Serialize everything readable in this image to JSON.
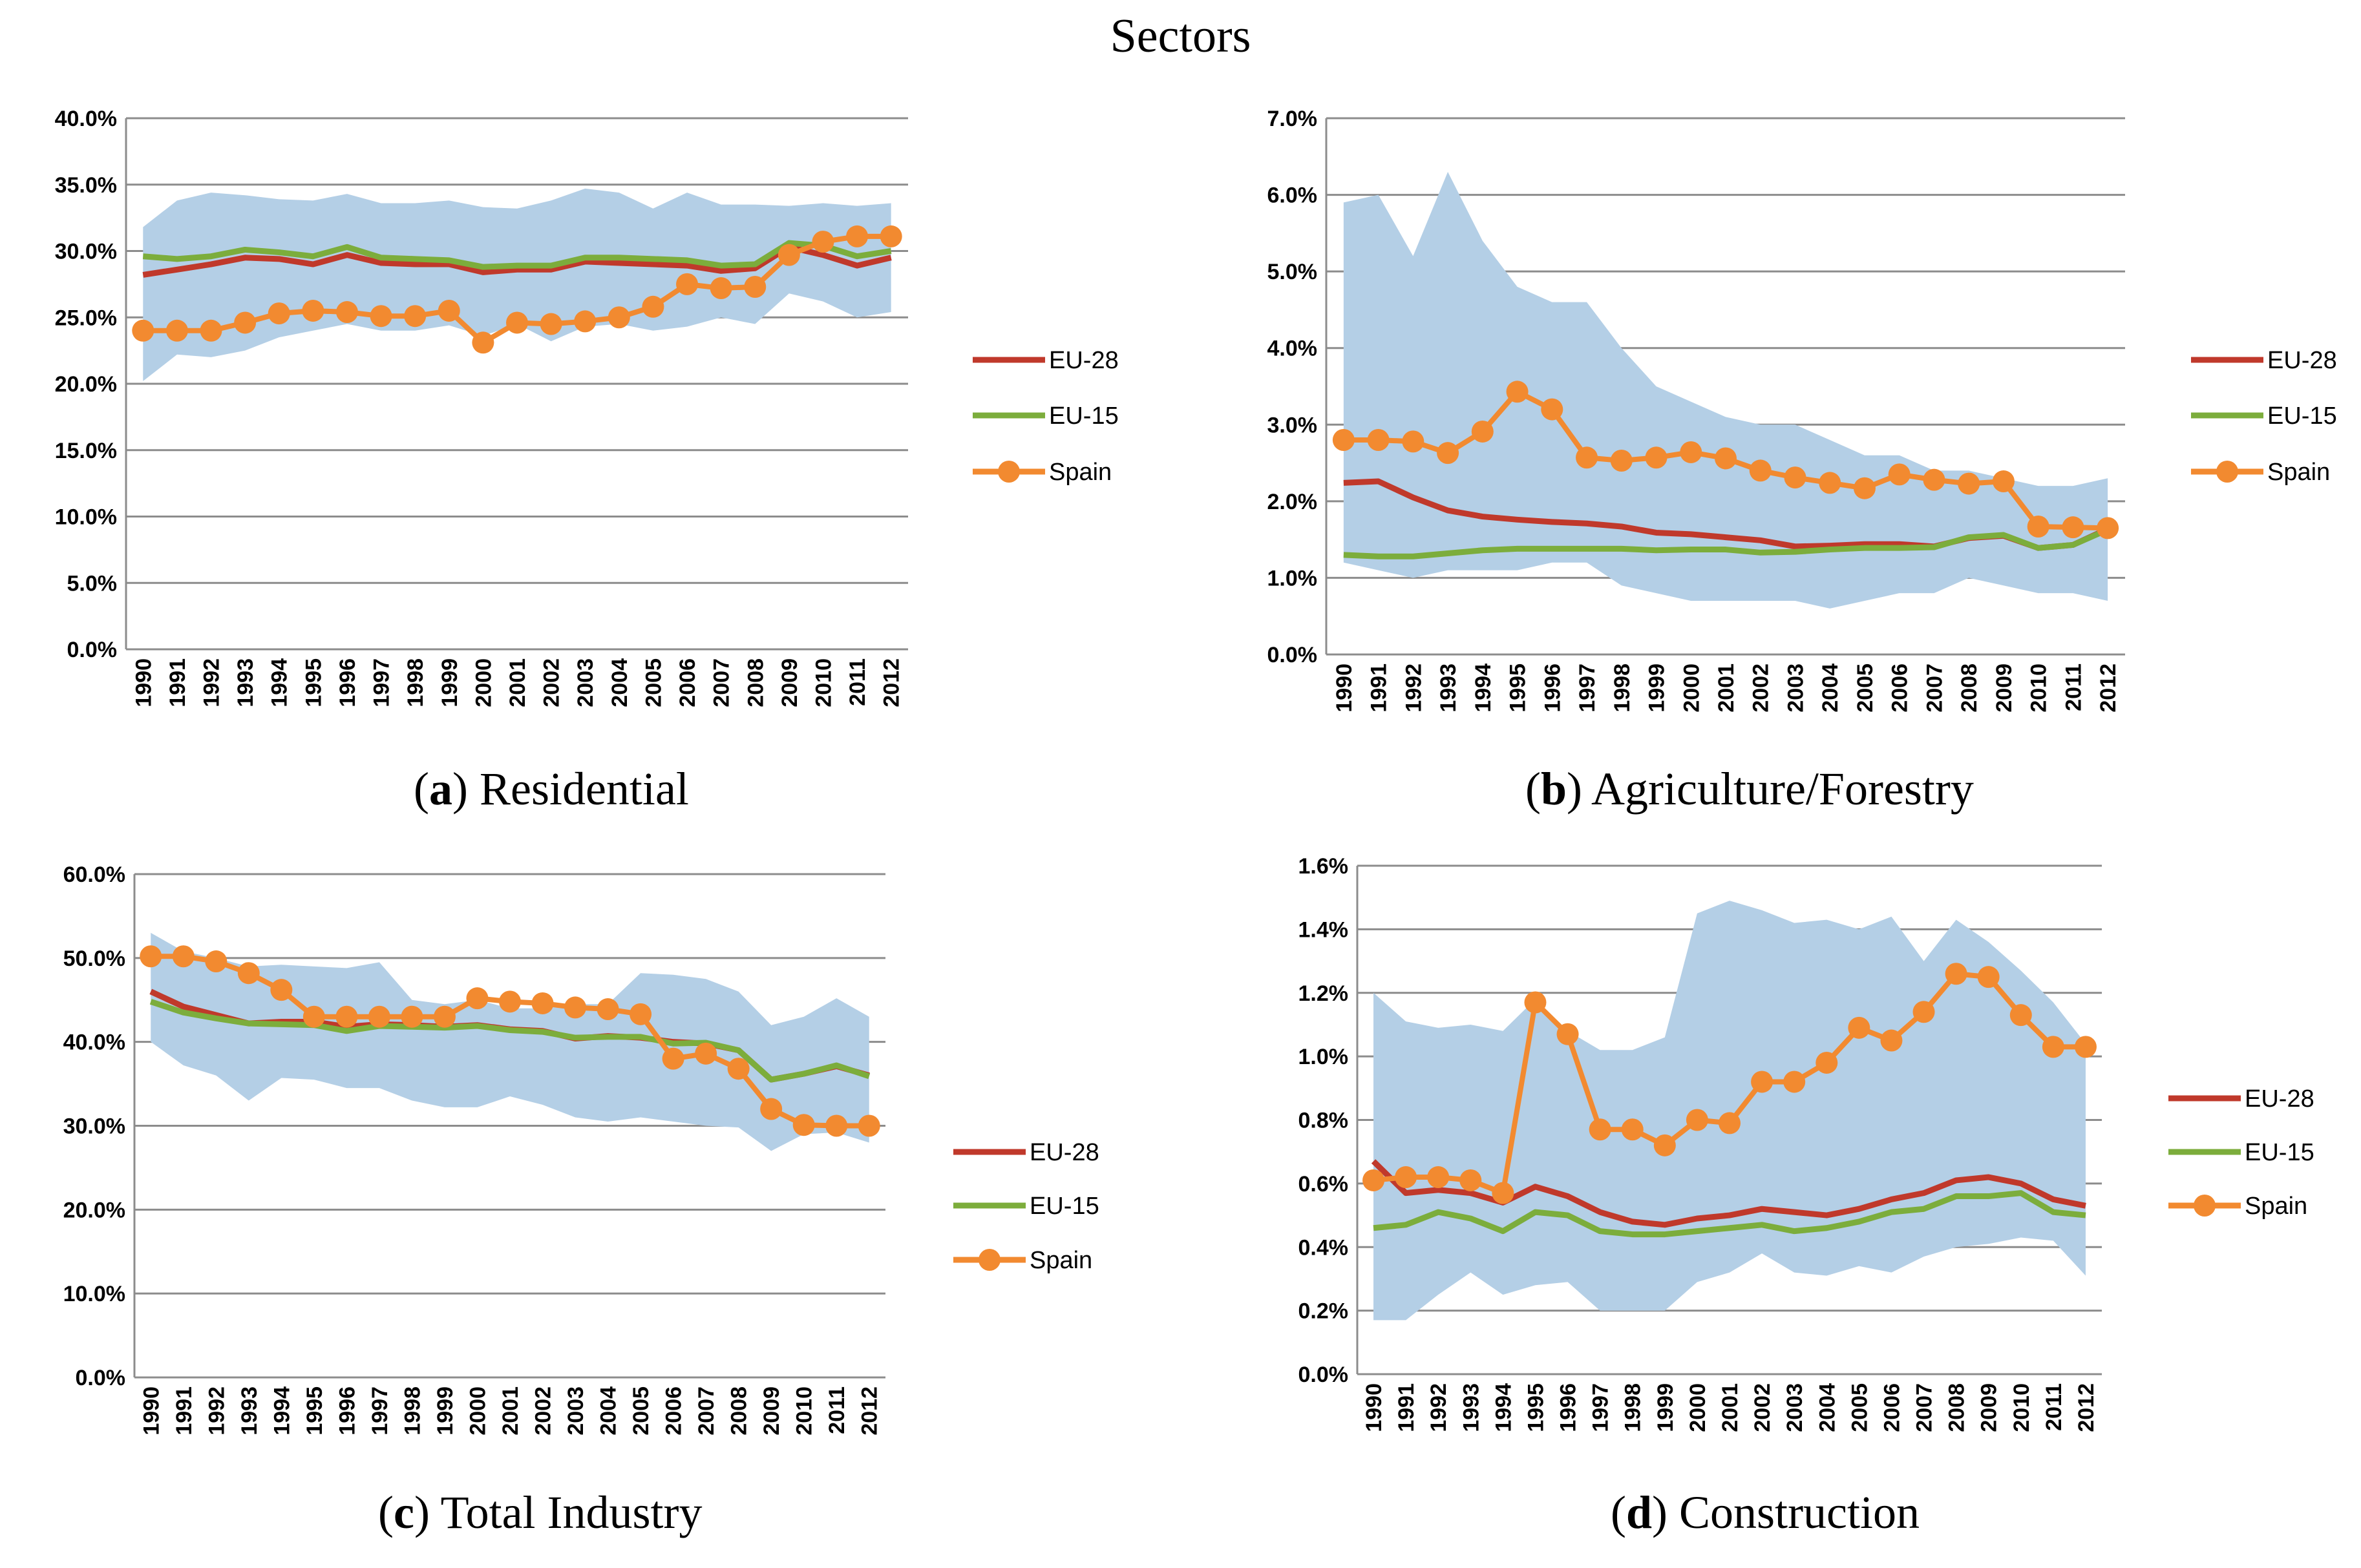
{
  "page_title": "Sectors",
  "colors": {
    "eu28": "#c0392b",
    "eu15": "#7cad3c",
    "spain": "#f28a30",
    "band": "#b4cfe6",
    "grid": "#8c8c8c"
  },
  "legend_labels": [
    "EU-28",
    "EU-15",
    "Spain"
  ],
  "chart_data": [
    {
      "type": "line",
      "letter": "a",
      "title": "Residential",
      "x": [
        "1990",
        "1991",
        "1992",
        "1993",
        "1994",
        "1995",
        "1996",
        "1997",
        "1998",
        "1999",
        "2000",
        "2001",
        "2002",
        "2003",
        "2004",
        "2005",
        "2006",
        "2007",
        "2008",
        "2009",
        "2010",
        "2011",
        "2012"
      ],
      "ylim": [
        0,
        0.4
      ],
      "yticks": [
        0,
        0.05,
        0.1,
        0.15,
        0.2,
        0.25,
        0.3,
        0.35,
        0.4
      ],
      "ytick_labels": [
        "0.0%",
        "5.0%",
        "10.0%",
        "15.0%",
        "20.0%",
        "25.0%",
        "30.0%",
        "35.0%",
        "40.0%"
      ],
      "band": {
        "upper": [
          0.318,
          0.338,
          0.344,
          0.342,
          0.339,
          0.338,
          0.343,
          0.336,
          0.336,
          0.338,
          0.333,
          0.332,
          0.338,
          0.347,
          0.344,
          0.332,
          0.344,
          0.335,
          0.335,
          0.334,
          0.336,
          0.334,
          0.336
        ],
        "lower": [
          0.202,
          0.222,
          0.22,
          0.225,
          0.235,
          0.24,
          0.245,
          0.24,
          0.24,
          0.244,
          0.236,
          0.245,
          0.232,
          0.243,
          0.245,
          0.24,
          0.243,
          0.25,
          0.245,
          0.268,
          0.262,
          0.25,
          0.254
        ]
      },
      "series": [
        {
          "name": "EU-28",
          "values": [
            0.282,
            0.286,
            0.29,
            0.295,
            0.294,
            0.29,
            0.297,
            0.291,
            0.29,
            0.29,
            0.284,
            0.286,
            0.286,
            0.292,
            0.291,
            0.29,
            0.289,
            0.285,
            0.287,
            0.303,
            0.297,
            0.289,
            0.295
          ]
        },
        {
          "name": "EU-15",
          "values": [
            0.296,
            0.294,
            0.296,
            0.301,
            0.299,
            0.296,
            0.303,
            0.295,
            0.294,
            0.293,
            0.288,
            0.289,
            0.289,
            0.295,
            0.295,
            0.294,
            0.293,
            0.289,
            0.29,
            0.306,
            0.304,
            0.296,
            0.3
          ]
        },
        {
          "name": "Spain",
          "values": [
            0.24,
            0.24,
            0.24,
            0.246,
            0.253,
            0.255,
            0.254,
            0.251,
            0.251,
            0.255,
            0.231,
            0.246,
            0.245,
            0.247,
            0.25,
            0.258,
            0.275,
            0.272,
            0.273,
            0.297,
            0.307,
            0.311,
            0.311
          ]
        }
      ]
    },
    {
      "type": "line",
      "letter": "b",
      "title": "Agriculture/Forestry",
      "x": [
        "1990",
        "1991",
        "1992",
        "1993",
        "1994",
        "1995",
        "1996",
        "1997",
        "1998",
        "1999",
        "2000",
        "2001",
        "2002",
        "2003",
        "2004",
        "2005",
        "2006",
        "2007",
        "2008",
        "2009",
        "2010",
        "2011",
        "2012"
      ],
      "ylim": [
        0,
        0.07
      ],
      "yticks": [
        0,
        0.01,
        0.02,
        0.03,
        0.04,
        0.05,
        0.06,
        0.07
      ],
      "ytick_labels": [
        "0.0%",
        "1.0%",
        "2.0%",
        "3.0%",
        "4.0%",
        "5.0%",
        "6.0%",
        "7.0%"
      ],
      "band": {
        "upper": [
          0.059,
          0.06,
          0.052,
          0.063,
          0.054,
          0.048,
          0.046,
          0.046,
          0.04,
          0.035,
          0.033,
          0.031,
          0.03,
          0.03,
          0.028,
          0.026,
          0.026,
          0.024,
          0.024,
          0.023,
          0.022,
          0.022,
          0.023
        ],
        "lower": [
          0.012,
          0.011,
          0.01,
          0.011,
          0.011,
          0.011,
          0.012,
          0.012,
          0.009,
          0.008,
          0.007,
          0.007,
          0.007,
          0.007,
          0.006,
          0.007,
          0.008,
          0.008,
          0.01,
          0.009,
          0.008,
          0.008,
          0.007
        ]
      },
      "series": [
        {
          "name": "EU-28",
          "values": [
            0.0224,
            0.0226,
            0.0205,
            0.0188,
            0.018,
            0.0176,
            0.0173,
            0.0171,
            0.0167,
            0.0159,
            0.0157,
            0.0153,
            0.0149,
            0.0141,
            0.0142,
            0.0144,
            0.0144,
            0.0141,
            0.0152,
            0.0155,
            0.0139,
            0.0143,
            0.0164
          ]
        },
        {
          "name": "EU-15",
          "values": [
            0.013,
            0.0128,
            0.0128,
            0.0132,
            0.0136,
            0.0138,
            0.0138,
            0.0138,
            0.0138,
            0.0136,
            0.0137,
            0.0137,
            0.0133,
            0.0134,
            0.0137,
            0.0139,
            0.0139,
            0.014,
            0.0153,
            0.0156,
            0.0139,
            0.0143,
            0.0163
          ]
        },
        {
          "name": "Spain",
          "values": [
            0.028,
            0.028,
            0.0278,
            0.0263,
            0.0291,
            0.0343,
            0.032,
            0.0257,
            0.0253,
            0.0257,
            0.0264,
            0.0256,
            0.024,
            0.0231,
            0.0224,
            0.0217,
            0.0235,
            0.0228,
            0.0223,
            0.0226,
            0.0167,
            0.0166,
            0.0165
          ]
        }
      ]
    },
    {
      "type": "line",
      "letter": "c",
      "title": "Total Industry",
      "x": [
        "1990",
        "1991",
        "1992",
        "1993",
        "1994",
        "1995",
        "1996",
        "1997",
        "1998",
        "1999",
        "2000",
        "2001",
        "2002",
        "2003",
        "2004",
        "2005",
        "2006",
        "2007",
        "2008",
        "2009",
        "2010",
        "2011",
        "2012"
      ],
      "ylim": [
        0,
        0.6
      ],
      "yticks": [
        0,
        0.1,
        0.2,
        0.3,
        0.4,
        0.5,
        0.6
      ],
      "ytick_labels": [
        "0.0%",
        "10.0%",
        "20.0%",
        "30.0%",
        "40.0%",
        "50.0%",
        "60.0%"
      ],
      "band": {
        "upper": [
          0.53,
          0.508,
          0.5,
          0.49,
          0.492,
          0.49,
          0.488,
          0.495,
          0.45,
          0.445,
          0.45,
          0.44,
          0.44,
          0.445,
          0.445,
          0.482,
          0.48,
          0.475,
          0.46,
          0.42,
          0.43,
          0.452,
          0.43
        ],
        "lower": [
          0.4,
          0.372,
          0.36,
          0.33,
          0.357,
          0.355,
          0.345,
          0.345,
          0.33,
          0.322,
          0.322,
          0.335,
          0.325,
          0.31,
          0.305,
          0.31,
          0.305,
          0.3,
          0.298,
          0.27,
          0.29,
          0.292,
          0.28
        ]
      },
      "series": [
        {
          "name": "EU-28",
          "values": [
            0.46,
            0.442,
            0.432,
            0.422,
            0.424,
            0.424,
            0.418,
            0.421,
            0.42,
            0.418,
            0.42,
            0.415,
            0.413,
            0.404,
            0.407,
            0.405,
            0.4,
            0.398,
            0.39,
            0.355,
            0.362,
            0.371,
            0.36
          ]
        },
        {
          "name": "EU-15",
          "values": [
            0.448,
            0.435,
            0.428,
            0.422,
            0.421,
            0.42,
            0.413,
            0.419,
            0.418,
            0.417,
            0.419,
            0.414,
            0.412,
            0.405,
            0.406,
            0.406,
            0.398,
            0.399,
            0.39,
            0.355,
            0.362,
            0.372,
            0.359
          ]
        },
        {
          "name": "Spain",
          "values": [
            0.502,
            0.502,
            0.496,
            0.482,
            0.462,
            0.43,
            0.43,
            0.43,
            0.43,
            0.43,
            0.452,
            0.448,
            0.446,
            0.441,
            0.439,
            0.433,
            0.38,
            0.386,
            0.368,
            0.32,
            0.301,
            0.3,
            0.3
          ]
        }
      ]
    },
    {
      "type": "line",
      "letter": "d",
      "title": "Construction",
      "x": [
        "1990",
        "1991",
        "1992",
        "1993",
        "1994",
        "1995",
        "1996",
        "1997",
        "1998",
        "1999",
        "2000",
        "2001",
        "2002",
        "2003",
        "2004",
        "2005",
        "2006",
        "2007",
        "2008",
        "2009",
        "2010",
        "2011",
        "2012"
      ],
      "ylim": [
        0,
        0.016
      ],
      "yticks": [
        0,
        0.002,
        0.004,
        0.006,
        0.008,
        0.01,
        0.012,
        0.014,
        0.016
      ],
      "ytick_labels": [
        "0.0%",
        "0.2%",
        "0.4%",
        "0.6%",
        "0.8%",
        "1.0%",
        "1.2%",
        "1.4%",
        "1.6%"
      ],
      "band": {
        "upper": [
          0.012,
          0.0111,
          0.0109,
          0.011,
          0.0108,
          0.0118,
          0.0108,
          0.0102,
          0.0102,
          0.0106,
          0.0145,
          0.0149,
          0.0146,
          0.0142,
          0.0143,
          0.014,
          0.0144,
          0.013,
          0.0143,
          0.0136,
          0.0127,
          0.0117,
          0.0104
        ],
        "lower": [
          0.0017,
          0.0017,
          0.0025,
          0.0032,
          0.0025,
          0.0028,
          0.0029,
          0.002,
          0.002,
          0.002,
          0.0029,
          0.0032,
          0.0038,
          0.0032,
          0.0031,
          0.0034,
          0.0032,
          0.0037,
          0.004,
          0.0041,
          0.0043,
          0.0042,
          0.0031
        ]
      },
      "series": [
        {
          "name": "EU-28",
          "values": [
            0.0067,
            0.0057,
            0.0058,
            0.0057,
            0.0054,
            0.0059,
            0.0056,
            0.0051,
            0.0048,
            0.0047,
            0.0049,
            0.005,
            0.0052,
            0.0051,
            0.005,
            0.0052,
            0.0055,
            0.0057,
            0.0061,
            0.0062,
            0.006,
            0.0055,
            0.0053
          ]
        },
        {
          "name": "EU-15",
          "values": [
            0.0046,
            0.0047,
            0.0051,
            0.0049,
            0.0045,
            0.0051,
            0.005,
            0.0045,
            0.0044,
            0.0044,
            0.0045,
            0.0046,
            0.0047,
            0.0045,
            0.0046,
            0.0048,
            0.0051,
            0.0052,
            0.0056,
            0.0056,
            0.0057,
            0.0051,
            0.005
          ]
        },
        {
          "name": "Spain",
          "values": [
            0.0061,
            0.0062,
            0.0062,
            0.0061,
            0.0057,
            0.0117,
            0.0107,
            0.0077,
            0.0077,
            0.0072,
            0.008,
            0.0079,
            0.0092,
            0.0092,
            0.0098,
            0.0109,
            0.0105,
            0.0114,
            0.0126,
            0.0125,
            0.0113,
            0.0103,
            0.0103
          ]
        }
      ]
    }
  ]
}
